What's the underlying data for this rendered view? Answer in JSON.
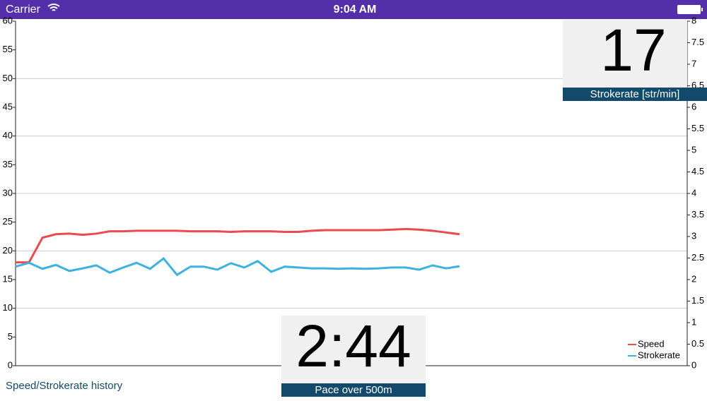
{
  "status_bar": {
    "carrier": "Carrier",
    "time": "9:04 AM"
  },
  "chart_data": {
    "type": "line",
    "categories": [
      null,
      null,
      null,
      null,
      null,
      null,
      null,
      null,
      null,
      null,
      null,
      null,
      null,
      null,
      null,
      null,
      null,
      null,
      null,
      null,
      null,
      null,
      null,
      null,
      null,
      null,
      null,
      null,
      null,
      null,
      null,
      null,
      null,
      null
    ],
    "series": [
      {
        "name": "Speed",
        "color": "#ec4a4f",
        "axis": "y",
        "values": [
          18,
          18,
          22.3,
          22.9,
          23,
          22.8,
          23,
          23.4,
          23.4,
          23.5,
          23.5,
          23.5,
          23.5,
          23.4,
          23.4,
          23.4,
          23.3,
          23.4,
          23.4,
          23.4,
          23.3,
          23.3,
          23.5,
          23.6,
          23.6,
          23.6,
          23.6,
          23.6,
          23.7,
          23.8,
          23.7,
          23.5,
          23.2,
          22.9
        ]
      },
      {
        "name": "Strokerate",
        "color": "#3cb2e2",
        "axis": "y2",
        "values": [
          2.3,
          2.39,
          2.25,
          2.34,
          2.2,
          2.26,
          2.33,
          2.16,
          2.28,
          2.39,
          2.25,
          2.49,
          2.11,
          2.3,
          2.3,
          2.23,
          2.38,
          2.28,
          2.43,
          2.18,
          2.3,
          2.28,
          2.26,
          2.26,
          2.25,
          2.26,
          2.25,
          2.26,
          2.28,
          2.28,
          2.23,
          2.33,
          2.26,
          2.31
        ]
      }
    ],
    "ylim": [
      0,
      60
    ],
    "yticks": [
      0,
      5,
      10,
      15,
      20,
      25,
      30,
      35,
      40,
      45,
      50,
      55,
      60
    ],
    "y2lim": [
      0,
      8
    ],
    "y2ticks": [
      0,
      0.5,
      1,
      1.5,
      2,
      2.5,
      3,
      3.5,
      4,
      4.5,
      5,
      5.5,
      6,
      6.5,
      7,
      7.5,
      8
    ],
    "ygrid": [
      10,
      20,
      30,
      40,
      50
    ],
    "legend": "lower right"
  },
  "strokerate_widget": {
    "value": "17",
    "label": "Strokerate [str/min]"
  },
  "pace_widget": {
    "value": "2:44",
    "label": "Pace over 500m"
  },
  "footer": "Speed/Strokerate history"
}
